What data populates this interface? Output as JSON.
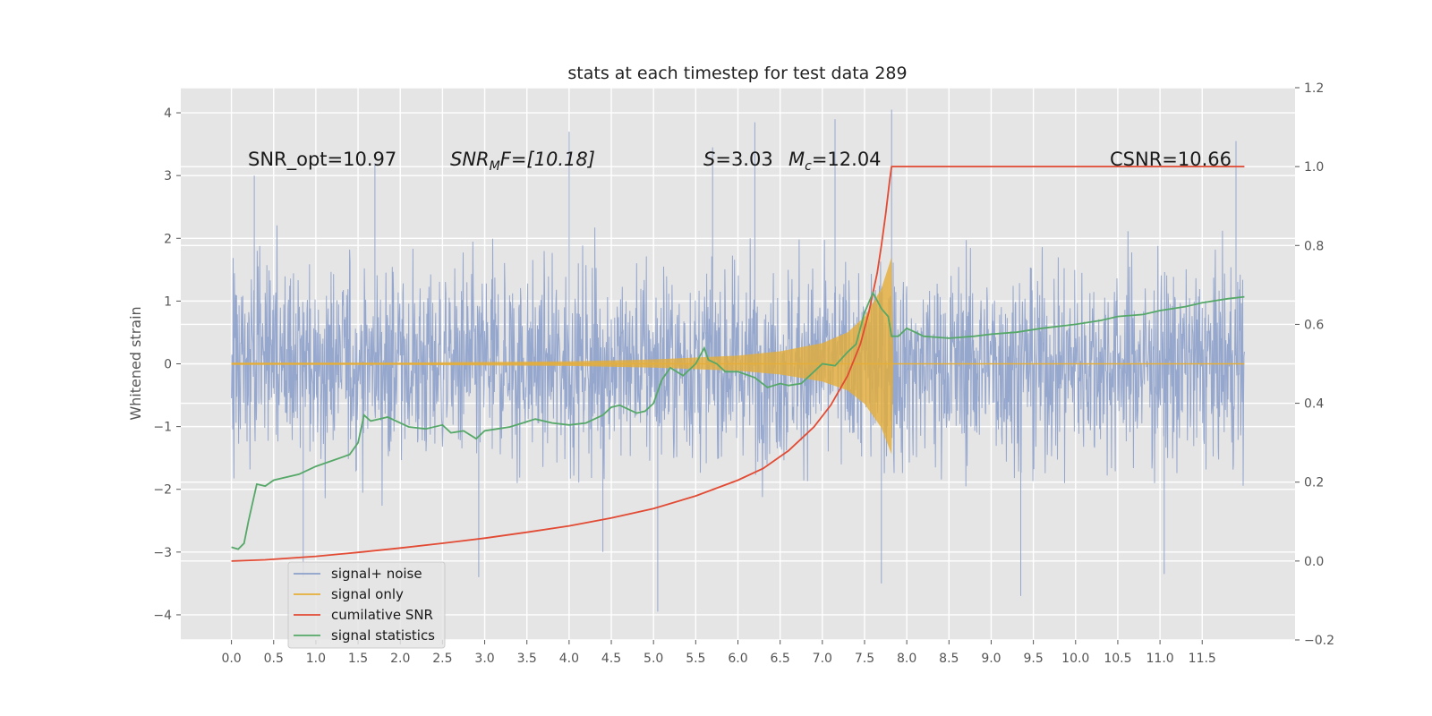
{
  "chart_data": {
    "type": "line",
    "title": "stats at each timestep for test data 289",
    "xlabel": "",
    "ylabel": "Whitened strain",
    "y2label": "",
    "xlim": [
      -0.6,
      12.6
    ],
    "ylim": [
      -4.4,
      4.4
    ],
    "y2lim": [
      -0.2,
      1.2
    ],
    "x_ticks": [
      "0.0",
      "0.5",
      "1.0",
      "1.5",
      "2.0",
      "2.5",
      "3.0",
      "3.5",
      "4.0",
      "4.5",
      "5.0",
      "5.5",
      "6.0",
      "6.5",
      "7.0",
      "7.5",
      "8.0",
      "8.5",
      "9.0",
      "9.5",
      "10.0",
      "10.5",
      "11.0",
      "11.5"
    ],
    "y_ticks": [
      "4",
      "3",
      "2",
      "1",
      "0",
      "−1",
      "−2",
      "−3",
      "−4"
    ],
    "y2_ticks": [
      "1.2",
      "1.0",
      "0.8",
      "0.6",
      "0.4",
      "0.2",
      "0.0",
      "−0.2"
    ],
    "grid": true,
    "legend_position": "lower-left",
    "annotations": {
      "snr_opt": "SNR_opt=10.97",
      "snr_mf_var": "SNR",
      "snr_mf_sub": "M",
      "snr_mf_rest": "F=[10.18]",
      "s_var": "S",
      "s_val": "=3.03",
      "mc_var": "M",
      "mc_sub": "c",
      "mc_val": "=12.04",
      "csnr": "CSNR=10.66"
    },
    "series": [
      {
        "name": "signal+ noise",
        "color": "#8da0cb",
        "description": "whitened strain noise band, approximately ±2 with spikes to ±4",
        "x_range": [
          0.0,
          12.0
        ],
        "band": [
          -2.0,
          2.0
        ],
        "peaks": [
          [
            0.27,
            3.0
          ],
          [
            1.7,
            3.2
          ],
          [
            4.0,
            3.7
          ],
          [
            5.7,
            3.45
          ],
          [
            6.2,
            3.85
          ],
          [
            7.15,
            3.9
          ],
          [
            7.82,
            4.05
          ],
          [
            11.9,
            3.55
          ],
          [
            0.85,
            -3.4
          ],
          [
            2.93,
            -3.4
          ],
          [
            5.05,
            -3.95
          ],
          [
            9.35,
            -3.7
          ],
          [
            11.05,
            -3.35
          ],
          [
            7.7,
            -3.5
          ],
          [
            4.4,
            -3.0
          ]
        ]
      },
      {
        "name": "signal only",
        "color": "#e5ae38",
        "description": "chirp with amplitude growing toward merger at ~7.82 s",
        "envelope": [
          [
            0.0,
            0.02
          ],
          [
            2.0,
            0.02
          ],
          [
            4.0,
            0.04
          ],
          [
            5.0,
            0.07
          ],
          [
            6.0,
            0.13
          ],
          [
            6.5,
            0.2
          ],
          [
            7.0,
            0.33
          ],
          [
            7.3,
            0.5
          ],
          [
            7.5,
            0.75
          ],
          [
            7.7,
            1.2
          ],
          [
            7.82,
            1.7
          ],
          [
            7.84,
            0.0
          ],
          [
            12.0,
            0.0
          ]
        ]
      },
      {
        "name": "cumilative SNR",
        "color": "#e24a33",
        "axis": "right",
        "x": [
          0.0,
          0.4,
          1.0,
          1.5,
          2.0,
          2.5,
          3.0,
          3.5,
          4.0,
          4.5,
          5.0,
          5.5,
          6.0,
          6.3,
          6.6,
          6.9,
          7.1,
          7.3,
          7.45,
          7.55,
          7.65,
          7.7,
          7.75,
          7.8,
          7.82,
          8.0,
          9.0,
          10.0,
          11.0,
          12.0
        ],
        "y": [
          0.0,
          0.003,
          0.012,
          0.022,
          0.033,
          0.045,
          0.058,
          0.073,
          0.089,
          0.109,
          0.133,
          0.165,
          0.205,
          0.235,
          0.28,
          0.34,
          0.395,
          0.47,
          0.55,
          0.63,
          0.73,
          0.8,
          0.88,
          0.97,
          1.0,
          1.0,
          1.0,
          1.0,
          1.0,
          1.0
        ]
      },
      {
        "name": "signal statistics",
        "color": "#348abd",
        "axis": "right",
        "x": [
          0.0,
          0.08,
          0.15,
          0.2,
          0.3,
          0.4,
          0.5,
          0.6,
          0.8,
          1.0,
          1.2,
          1.4,
          1.5,
          1.57,
          1.65,
          1.75,
          1.85,
          2.0,
          2.1,
          2.3,
          2.5,
          2.6,
          2.75,
          2.9,
          3.0,
          3.15,
          3.3,
          3.45,
          3.6,
          3.8,
          4.0,
          4.2,
          4.4,
          4.5,
          4.6,
          4.8,
          4.9,
          5.0,
          5.1,
          5.2,
          5.35,
          5.5,
          5.6,
          5.65,
          5.75,
          5.85,
          6.0,
          6.2,
          6.35,
          6.5,
          6.6,
          6.75,
          6.9,
          7.0,
          7.15,
          7.3,
          7.4,
          7.5,
          7.6,
          7.7,
          7.78,
          7.82,
          7.9,
          8.0,
          8.2,
          8.5,
          8.8,
          9.0,
          9.3,
          9.6,
          10.0,
          10.3,
          10.5,
          10.8,
          11.0,
          11.3,
          11.5,
          11.8,
          12.0
        ],
        "y": [
          0.035,
          0.03,
          0.045,
          0.1,
          0.195,
          0.19,
          0.205,
          0.21,
          0.22,
          0.24,
          0.255,
          0.27,
          0.3,
          0.37,
          0.355,
          0.36,
          0.365,
          0.35,
          0.34,
          0.335,
          0.345,
          0.325,
          0.33,
          0.31,
          0.33,
          0.335,
          0.34,
          0.35,
          0.36,
          0.35,
          0.345,
          0.35,
          0.37,
          0.39,
          0.395,
          0.375,
          0.38,
          0.4,
          0.46,
          0.49,
          0.47,
          0.5,
          0.54,
          0.51,
          0.5,
          0.48,
          0.48,
          0.465,
          0.44,
          0.45,
          0.445,
          0.45,
          0.48,
          0.5,
          0.495,
          0.53,
          0.55,
          0.63,
          0.68,
          0.64,
          0.62,
          0.57,
          0.57,
          0.59,
          0.57,
          0.565,
          0.57,
          0.575,
          0.58,
          0.59,
          0.6,
          0.61,
          0.62,
          0.625,
          0.635,
          0.645,
          0.655,
          0.665,
          0.67
        ]
      }
    ],
    "legend": [
      "signal+ noise",
      "signal only",
      "cumilative SNR",
      "signal statistics"
    ]
  }
}
